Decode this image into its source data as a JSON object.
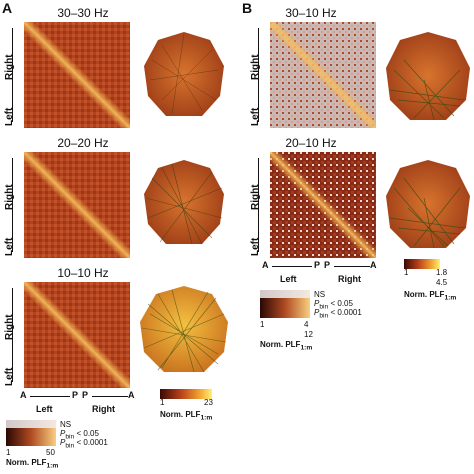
{
  "panels": {
    "A": {
      "letter": "A",
      "titles": [
        "30–30 Hz",
        "20–20 Hz",
        "10–10 Hz"
      ],
      "axis": {
        "left_a": "A",
        "left_p": "P",
        "right_p": "P",
        "right_a": "A",
        "left": "Left",
        "right": "Right"
      }
    },
    "B": {
      "letter": "B",
      "titles": [
        "30–10 Hz",
        "20–10 Hz"
      ],
      "axis": {
        "left_a": "A",
        "left_p": "P",
        "right_p": "P",
        "right_a": "A",
        "left": "Left",
        "right": "Right"
      }
    }
  },
  "colorbars": {
    "A_head": {
      "min": "1",
      "max": "23",
      "label_main": "Norm. PLF",
      "label_sub": "1:m"
    },
    "A_matrix": {
      "ns": "NS",
      "p05": "< 0.05",
      "p0001": "< 0.0001",
      "p_sym": "P",
      "p_sub": "bin",
      "min": "1",
      "max": "50",
      "label_main": "Norm. PLF",
      "label_sub": "1:m"
    },
    "B_matrix": {
      "ns": "NS",
      "p05": "< 0.05",
      "p0001": "< 0.0001",
      "p_sym": "P",
      "p_sub": "bin",
      "min": "1",
      "max_a": "4",
      "max_b": "12",
      "label_main": "Norm. PLF",
      "label_sub": "1:m"
    },
    "B_head": {
      "min": "1",
      "max_a": "1.8",
      "max_b": "4.5",
      "label_main": "Norm. PLF",
      "label_sub": "1:m"
    }
  },
  "colors": {
    "matrix_base": "#b8411c",
    "matrix_dark": "#7a1f0e",
    "diag": "#f0a040",
    "head_dark": "#a8401a",
    "head_light": "#f0b040",
    "ns_gray": "#c8c0c0"
  }
}
